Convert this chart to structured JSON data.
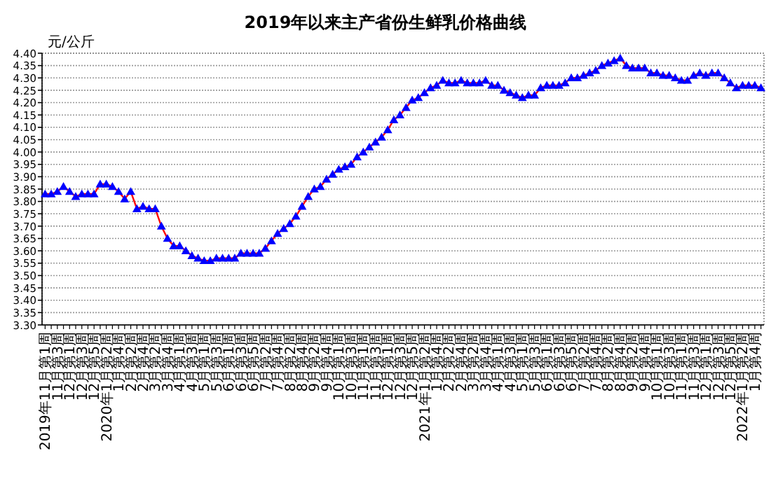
{
  "chart_data": {
    "type": "line",
    "title": "2019年以来主产省份生鲜乳价格曲线",
    "ylabel": "元/公斤",
    "categories": [
      "2019年11月第1周",
      null,
      "11月第3周",
      null,
      "12月第1周",
      null,
      "12月第3周",
      null,
      "12月第5周",
      null,
      "2020年1月第2周",
      null,
      "1月第4周",
      null,
      "2月第2周",
      null,
      "2月第4周",
      null,
      "3月第2周",
      null,
      "3月第4周",
      null,
      "4月第1周",
      null,
      "4月第3周",
      null,
      "5月第1周",
      null,
      "5月第3周",
      null,
      "6月第1周",
      null,
      "6月第3周",
      null,
      "6月第5周",
      null,
      "7月第2周",
      null,
      "7月第4周",
      null,
      "8月第2周",
      null,
      "8月第4周",
      null,
      "9月第2周",
      null,
      "9月第4周",
      null,
      "10月第1周",
      null,
      "10月第3周",
      null,
      "11月第1周",
      null,
      "11月第3周",
      null,
      "12月第1周",
      null,
      "12月第3周",
      null,
      "12月第5周",
      null,
      "2021年1月第2周",
      null,
      "1月第4周",
      null,
      "2月第2周",
      null,
      "2月第4周",
      null,
      "3月第2周",
      null,
      "3月第4周",
      null,
      "4月第1周",
      null,
      "4月第3周",
      null,
      "5月第1周",
      null,
      "5月第3周",
      null,
      "6月第1周",
      null,
      "6月第3周",
      null,
      "6月第5周",
      null,
      "7月第2周",
      null,
      "7月第4周",
      null,
      "8月第2周",
      null,
      "8月第4周",
      null,
      "9月第2周",
      null,
      "9月第4周",
      null,
      "10月第1周",
      null,
      "10月第3周",
      null,
      "11月第1周",
      null,
      "11月第3周",
      null,
      "12月第1周",
      null,
      "12月第3周",
      null,
      "12月第5周",
      null,
      "2022年1月第2周",
      null,
      "1月第4周",
      null
    ],
    "series": [
      {
        "color": "#0000ff",
        "values": [
          3.83,
          3.83,
          3.84,
          3.86,
          3.84,
          3.82,
          3.83,
          3.83,
          3.83,
          3.87,
          3.87,
          3.86,
          3.84,
          3.81,
          3.84,
          3.77,
          3.78,
          3.77,
          3.77,
          3.7,
          3.65,
          3.62,
          3.62,
          3.6,
          3.58,
          3.57,
          3.56,
          3.56,
          3.57,
          3.57,
          3.57,
          3.57,
          3.59,
          3.59,
          3.59,
          3.59,
          3.61,
          3.64,
          3.67,
          3.69,
          3.71,
          3.74,
          3.78,
          3.82,
          3.85,
          3.86,
          3.89,
          3.91,
          3.93,
          3.94,
          3.95,
          3.98,
          4.0,
          4.02,
          4.04,
          4.06,
          4.09,
          4.13,
          4.15,
          4.18,
          4.21,
          4.22,
          4.24,
          4.26,
          4.27,
          4.29,
          4.28,
          4.28,
          4.29,
          4.28,
          4.28,
          4.28,
          4.29,
          4.27,
          4.27,
          4.25,
          4.24,
          4.23,
          4.22,
          4.23,
          4.23,
          4.26,
          4.27,
          4.27,
          4.27,
          4.28,
          4.3,
          4.3,
          4.31,
          4.32,
          4.33,
          4.35,
          4.36,
          4.37,
          4.38,
          4.35,
          4.34,
          4.34,
          4.34,
          4.32,
          4.32,
          4.31,
          4.31,
          4.3,
          4.29,
          4.29,
          4.31,
          4.32,
          4.31,
          4.32,
          4.32,
          4.3,
          4.28,
          4.26,
          4.27,
          4.27,
          4.27,
          4.26
        ]
      }
    ],
    "marker": "triangle",
    "line_style": "solid",
    "grid": "y",
    "ylim": [
      3.3,
      4.4
    ],
    "yticks": [
      {
        "value": 3.3,
        "label": "3.30"
      },
      {
        "value": 3.35,
        "label": "3.35"
      },
      {
        "value": 3.4,
        "label": "3.40"
      },
      {
        "value": 3.45,
        "label": "3.45"
      },
      {
        "value": 3.5,
        "label": "3.50"
      },
      {
        "value": 3.55,
        "label": "3.55"
      },
      {
        "value": 3.6,
        "label": "3.60"
      },
      {
        "value": 3.65,
        "label": "3.65"
      },
      {
        "value": 3.7,
        "label": "3.70"
      },
      {
        "value": 3.75,
        "label": "3.75"
      },
      {
        "value": 3.8,
        "label": "3.80"
      },
      {
        "value": 3.85,
        "label": "3.85"
      },
      {
        "value": 3.9,
        "label": "3.90"
      },
      {
        "value": 3.95,
        "label": "3.95"
      },
      {
        "value": 4.0,
        "label": "4.00"
      },
      {
        "value": 4.05,
        "label": "4.05"
      },
      {
        "value": 4.1,
        "label": "4.10"
      },
      {
        "value": 4.15,
        "label": "4.15"
      },
      {
        "value": 4.2,
        "label": "4.20"
      },
      {
        "value": 4.25,
        "label": "4.25"
      },
      {
        "value": 4.3,
        "label": "4.30"
      },
      {
        "value": 4.35,
        "label": "4.35"
      },
      {
        "value": 4.4,
        "label": "4.40"
      }
    ]
  }
}
